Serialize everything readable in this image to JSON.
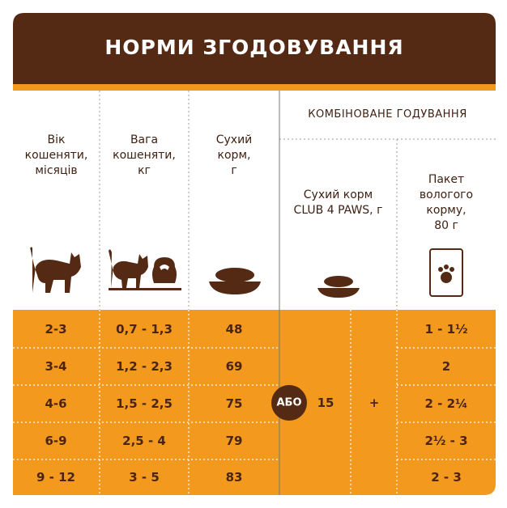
{
  "header": {
    "title": "НОРМИ ЗГОДОВУВАННЯ"
  },
  "table": {
    "columns": [
      "Вік\nкошеняти,\nмісяців",
      "Вага\nкошеняти,\nкг",
      "Сухий\nкорм,\nг"
    ],
    "combined": {
      "title": "КОМБІНОВАНЕ ГОДУВАННЯ",
      "columns": [
        "Сухий корм\nCLUB 4 PAWS, г",
        "Пакет\nвологого\nкорму,\n80 г"
      ],
      "or": "АБО",
      "dry": "15",
      "plus": "+"
    },
    "rows": [
      [
        "2-3",
        "0,7 - 1,3",
        "48",
        "1 - 1½"
      ],
      [
        "3-4",
        "1,2 - 2,3",
        "69",
        "2"
      ],
      [
        "4-6",
        "1,5 - 2,5",
        "75",
        "2 - 2¼"
      ],
      [
        "6-9",
        "2,5 - 4",
        "79",
        "2½ - 3"
      ],
      [
        "9 - 12",
        "3 - 5",
        "83",
        "2 - 3"
      ]
    ]
  }
}
